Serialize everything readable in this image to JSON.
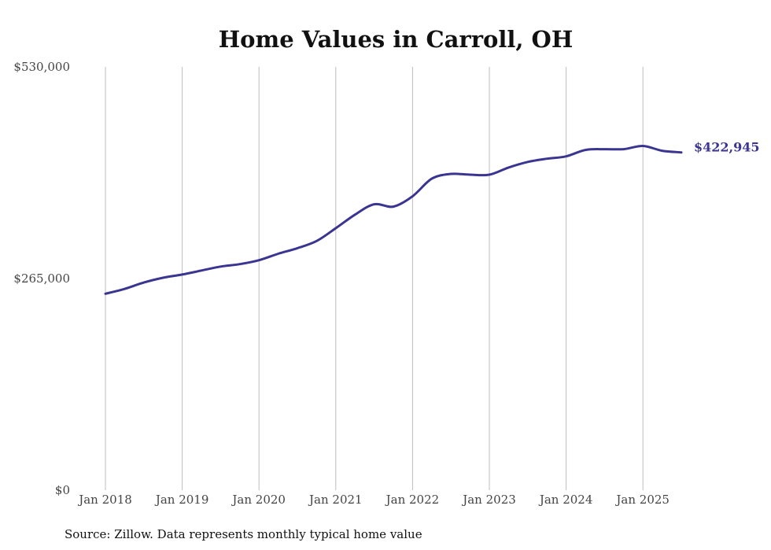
{
  "chart_data": {
    "type": "line",
    "title": "Home Values in Carroll, OH",
    "xlabel": "",
    "ylabel": "",
    "ylim": [
      0,
      530000
    ],
    "y_ticks": [
      {
        "value": 0,
        "label": "$0"
      },
      {
        "value": 265000,
        "label": "$265,000"
      },
      {
        "value": 530000,
        "label": "$530,000"
      }
    ],
    "x_ticks": [
      {
        "value": "2018-01",
        "label": "Jan 2018"
      },
      {
        "value": "2019-01",
        "label": "Jan 2019"
      },
      {
        "value": "2020-01",
        "label": "Jan 2020"
      },
      {
        "value": "2021-01",
        "label": "Jan 2021"
      },
      {
        "value": "2022-01",
        "label": "Jan 2022"
      },
      {
        "value": "2023-01",
        "label": "Jan 2023"
      },
      {
        "value": "2024-01",
        "label": "Jan 2024"
      },
      {
        "value": "2025-01",
        "label": "Jan 2025"
      }
    ],
    "grid": "vertical",
    "line_color": "#3b3592",
    "end_label": "$422,945",
    "series": [
      {
        "x": [
          "2018-01",
          "2018-04",
          "2018-07",
          "2018-10",
          "2019-01",
          "2019-04",
          "2019-07",
          "2019-10",
          "2020-01",
          "2020-04",
          "2020-07",
          "2020-10",
          "2021-01",
          "2021-04",
          "2021-07",
          "2021-10",
          "2022-01",
          "2022-04",
          "2022-07",
          "2022-10",
          "2023-01",
          "2023-04",
          "2023-07",
          "2023-10",
          "2024-01",
          "2024-04",
          "2024-07",
          "2024-10",
          "2025-01",
          "2025-04",
          "2025-07"
        ],
        "values": [
          246000,
          252000,
          260000,
          266000,
          270000,
          275000,
          280000,
          283000,
          288000,
          296000,
          303000,
          312000,
          328000,
          345000,
          358000,
          355000,
          368000,
          390000,
          396000,
          395000,
          395000,
          404000,
          411000,
          415000,
          418000,
          426000,
          427000,
          427000,
          431000,
          425000,
          422945
        ]
      }
    ]
  },
  "footer": {
    "source": "Source: Zillow. Data represents monthly typical home value"
  }
}
